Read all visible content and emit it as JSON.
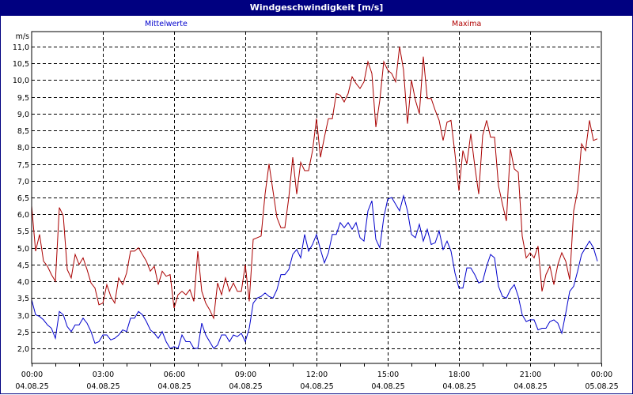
{
  "title": "Windgeschwindigkeit [m/s]",
  "legend": {
    "mean_label": "Mittelwerte",
    "max_label": "Maxima"
  },
  "colors": {
    "frame": "#000080",
    "mean": "#0000cc",
    "max": "#aa0000",
    "grid": "#000000"
  },
  "chart_data": {
    "type": "line",
    "title": "Windgeschwindigkeit [m/s]",
    "ylabel": "m/s",
    "xlabel": "",
    "ylim": [
      1.55,
      11.45
    ],
    "yticks": [
      "11,0",
      "10,5",
      "10,0",
      "9,5",
      "9,0",
      "8,5",
      "8,0",
      "7,5",
      "7,0",
      "6,5",
      "6,0",
      "5,5",
      "5,0",
      "4,5",
      "4,0",
      "3,5",
      "3,0",
      "2,5",
      "2,0"
    ],
    "ytick_values": [
      11.0,
      10.5,
      10.0,
      9.5,
      9.0,
      8.5,
      8.0,
      7.5,
      7.0,
      6.5,
      6.0,
      5.5,
      5.0,
      4.5,
      4.0,
      3.5,
      3.0,
      2.5,
      2.0
    ],
    "xticks": [
      {
        "time": "00:00",
        "date": "04.08.25"
      },
      {
        "time": "03:00",
        "date": "04.08.25"
      },
      {
        "time": "06:00",
        "date": "04.08.25"
      },
      {
        "time": "09:00",
        "date": "04.08.25"
      },
      {
        "time": "12:00",
        "date": "04.08.25"
      },
      {
        "time": "15:00",
        "date": "04.08.25"
      },
      {
        "time": "18:00",
        "date": "04.08.25"
      },
      {
        "time": "21:00",
        "date": "04.08.25"
      },
      {
        "time": "00:00",
        "date": "05.08.25"
      }
    ],
    "x_interval_minutes": 10,
    "grid": true,
    "legend_position": "top",
    "series": [
      {
        "name": "Mittelwerte",
        "color": "#0000cc",
        "values": [
          3.45,
          3.0,
          2.95,
          2.85,
          2.7,
          2.6,
          2.3,
          3.1,
          3.0,
          2.65,
          2.5,
          2.7,
          2.7,
          2.9,
          2.75,
          2.5,
          2.15,
          2.2,
          2.4,
          2.4,
          2.25,
          2.3,
          2.4,
          2.55,
          2.5,
          2.9,
          2.9,
          3.1,
          3.0,
          2.8,
          2.55,
          2.45,
          2.3,
          2.5,
          2.2,
          2.0,
          2.05,
          2.0,
          2.4,
          2.2,
          2.2,
          2.0,
          2.0,
          2.75,
          2.4,
          2.2,
          2.0,
          2.1,
          2.4,
          2.4,
          2.2,
          2.4,
          2.35,
          2.45,
          2.2,
          2.6,
          3.35,
          3.5,
          3.55,
          3.65,
          3.55,
          3.5,
          3.75,
          4.2,
          4.2,
          4.35,
          4.8,
          4.95,
          4.7,
          5.4,
          4.9,
          5.1,
          5.4,
          4.95,
          4.55,
          4.85,
          5.4,
          5.4,
          5.75,
          5.6,
          5.75,
          5.55,
          5.75,
          5.3,
          5.2,
          6.1,
          6.4,
          5.25,
          5.0,
          5.9,
          6.45,
          6.5,
          6.3,
          6.1,
          6.55,
          6.1,
          5.4,
          5.3,
          5.7,
          5.2,
          5.55,
          5.1,
          5.15,
          5.5,
          4.95,
          5.2,
          4.9,
          4.25,
          3.8,
          3.8,
          4.4,
          4.4,
          4.2,
          3.95,
          4.0,
          4.45,
          4.8,
          4.7,
          3.85,
          3.55,
          3.5,
          3.75,
          3.9,
          3.55,
          3.0,
          2.8,
          2.85,
          2.85,
          2.55,
          2.6,
          2.6,
          2.8,
          2.85,
          2.75,
          2.45,
          3.05,
          3.7,
          3.85,
          4.3,
          4.8,
          5.0,
          5.2,
          5.0,
          4.6
        ]
      },
      {
        "name": "Maxima",
        "color": "#aa0000",
        "values": [
          6.25,
          4.9,
          5.4,
          4.6,
          4.45,
          4.2,
          4.0,
          6.2,
          5.95,
          4.35,
          4.1,
          4.8,
          4.5,
          4.7,
          4.35,
          3.95,
          3.8,
          3.3,
          3.35,
          3.9,
          3.55,
          3.35,
          4.1,
          3.9,
          4.25,
          4.9,
          4.9,
          5.0,
          4.8,
          4.6,
          4.3,
          4.45,
          3.9,
          4.3,
          4.15,
          4.2,
          3.2,
          3.6,
          3.7,
          3.6,
          3.75,
          3.4,
          4.9,
          3.7,
          3.35,
          3.15,
          2.9,
          3.95,
          3.6,
          4.1,
          3.7,
          3.95,
          3.7,
          3.7,
          4.5,
          3.4,
          5.25,
          5.3,
          5.35,
          6.6,
          7.5,
          6.7,
          5.9,
          5.6,
          5.6,
          6.5,
          7.7,
          6.6,
          7.55,
          7.3,
          7.3,
          7.9,
          8.85,
          7.7,
          8.3,
          8.85,
          8.85,
          9.6,
          9.55,
          9.35,
          9.6,
          10.1,
          9.9,
          9.75,
          9.95,
          10.55,
          10.2,
          8.6,
          9.4,
          10.55,
          10.3,
          10.2,
          9.95,
          11.0,
          10.3,
          8.7,
          10.0,
          9.4,
          9.0,
          10.7,
          9.45,
          9.45,
          9.1,
          8.8,
          8.2,
          8.75,
          8.8,
          7.8,
          6.7,
          7.9,
          7.5,
          8.4,
          7.45,
          6.6,
          8.35,
          8.8,
          8.3,
          8.3,
          6.85,
          6.3,
          5.8,
          7.95,
          7.35,
          7.25,
          5.35,
          4.7,
          4.85,
          4.7,
          5.05,
          3.7,
          4.2,
          4.45,
          3.9,
          4.5,
          4.85,
          4.6,
          4.05,
          6.1,
          6.7,
          8.1,
          7.9,
          8.8,
          8.2,
          8.25
        ]
      }
    ]
  }
}
